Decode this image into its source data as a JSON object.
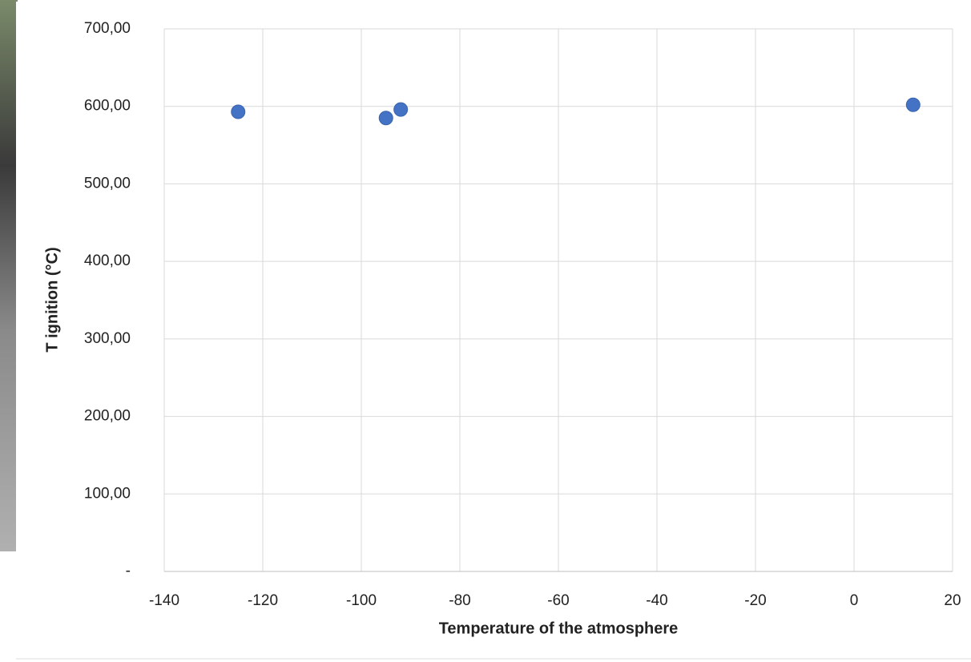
{
  "chart_data": {
    "type": "scatter",
    "x_label": "Temperature of the atmosphere",
    "y_label": "T ignition (°C)",
    "series": [
      {
        "color": "#4472c4",
        "x": [
          -125,
          -95,
          -92,
          12
        ],
        "values": [
          593,
          585,
          596,
          602
        ]
      }
    ],
    "xlim": [
      -140,
      20
    ],
    "xticks": [
      -140,
      -120,
      -100,
      -80,
      -60,
      -40,
      -20,
      0,
      20
    ],
    "ylim": [
      0,
      700
    ],
    "yticks": [
      {
        "value": 0,
        "label": "-"
      },
      {
        "value": 100,
        "label": "100,00"
      },
      {
        "value": 200,
        "label": "200,00"
      },
      {
        "value": 300,
        "label": "300,00"
      },
      {
        "value": 400,
        "label": "400,00"
      },
      {
        "value": 500,
        "label": "500,00"
      },
      {
        "value": 600,
        "label": "600,00"
      },
      {
        "value": 700,
        "label": "700,00"
      }
    ],
    "grid": true
  }
}
